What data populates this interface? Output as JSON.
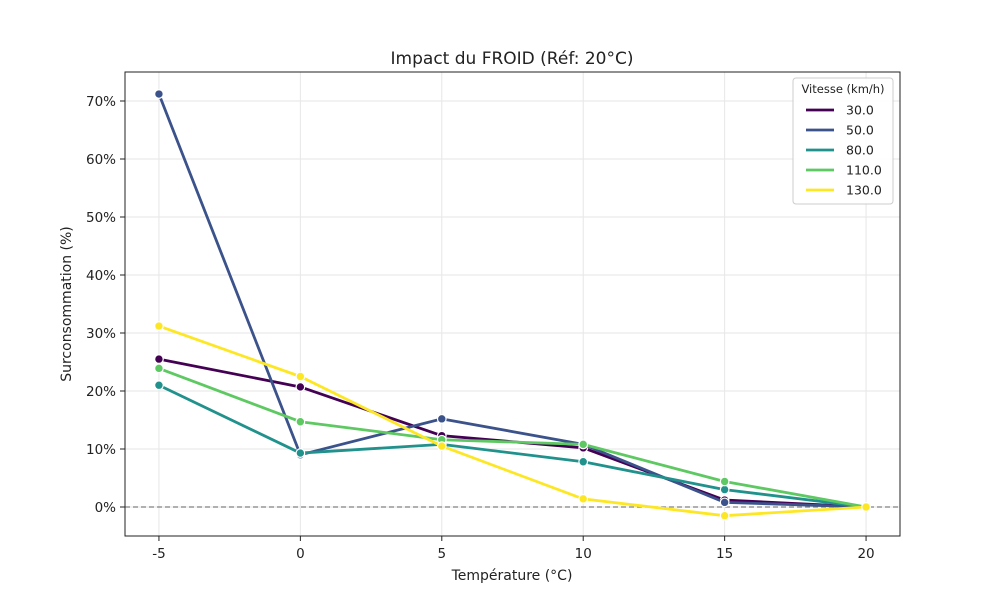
{
  "chart_data": {
    "type": "line",
    "title": "Impact du FROID (Réf: 20°C)",
    "xlabel": "Température (°C)",
    "ylabel": "Surconsommation (%)",
    "x": [
      -5,
      0,
      5,
      10,
      15,
      20
    ],
    "xlim": [
      -6.2,
      21.2
    ],
    "ylim": [
      -5,
      75
    ],
    "x_ticks": [
      -5,
      0,
      5,
      10,
      15,
      20
    ],
    "x_tick_labels": [
      "-5",
      "0",
      "5",
      "10",
      "15",
      "20"
    ],
    "y_ticks": [
      0,
      10,
      20,
      30,
      40,
      50,
      60,
      70
    ],
    "y_tick_labels": [
      "0%",
      "10%",
      "20%",
      "30%",
      "40%",
      "50%",
      "60%",
      "70%"
    ],
    "grid": true,
    "reference_line": {
      "y": 0,
      "style": "dashed",
      "color": "#808080"
    },
    "legend": {
      "title": "Vitesse (km/h)",
      "placement": "top-right"
    },
    "series": [
      {
        "name": "30.0",
        "color": "#440154",
        "values": [
          25.5,
          20.7,
          12.3,
          10.2,
          1.2,
          0.0
        ]
      },
      {
        "name": "50.0",
        "color": "#3b528b",
        "values": [
          71.2,
          9.0,
          15.2,
          10.8,
          0.8,
          0.0
        ]
      },
      {
        "name": "80.0",
        "color": "#21918c",
        "values": [
          21.0,
          9.3,
          10.8,
          7.8,
          3.0,
          0.0
        ]
      },
      {
        "name": "110.0",
        "color": "#5ec962",
        "values": [
          23.9,
          14.7,
          11.6,
          10.8,
          4.4,
          0.0
        ]
      },
      {
        "name": "130.0",
        "color": "#fde725",
        "values": [
          31.2,
          22.5,
          10.5,
          1.4,
          -1.5,
          0.0
        ]
      }
    ]
  }
}
